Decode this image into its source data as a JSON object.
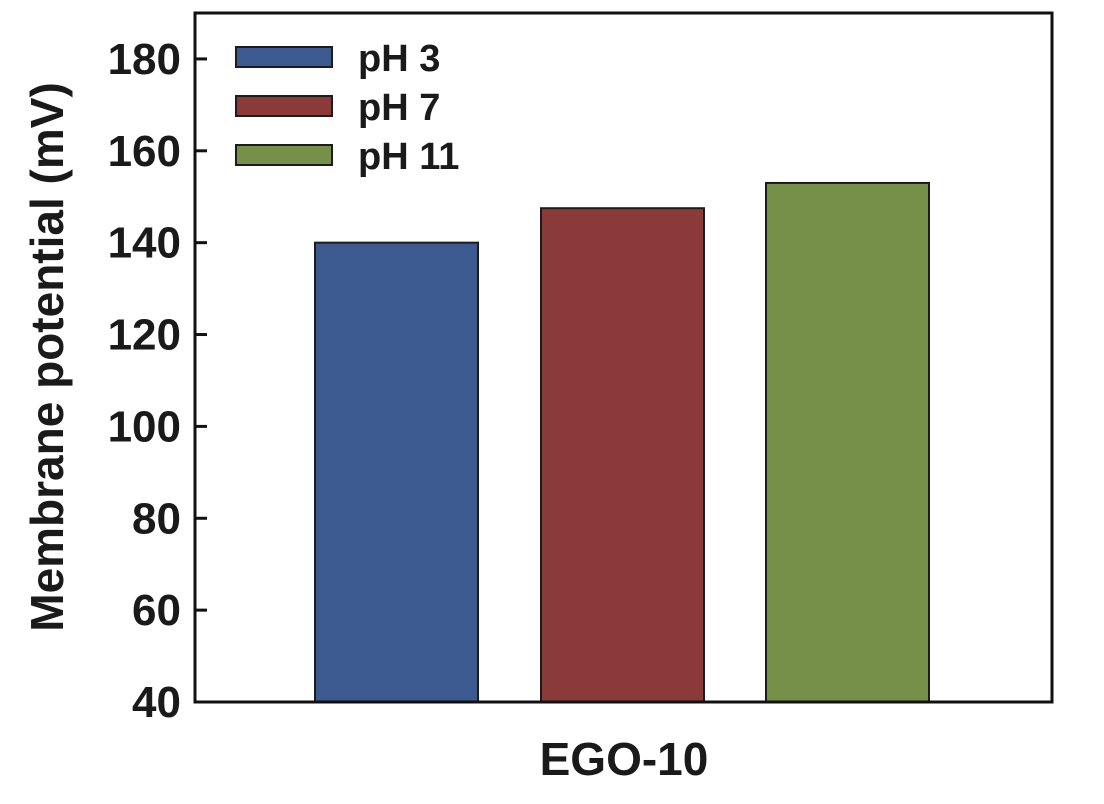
{
  "chart_data": {
    "type": "bar",
    "title": "",
    "xlabel": "EGO-10",
    "ylabel": "Membrane potential (mV)",
    "ylim": [
      40,
      190
    ],
    "yticks": [
      "40",
      "60",
      "80",
      "100",
      "120",
      "140",
      "160",
      "180"
    ],
    "yticks_values": [
      40,
      60,
      80,
      100,
      120,
      140,
      160,
      180
    ],
    "categories": [
      "EGO-10"
    ],
    "series": [
      {
        "name": "pH 3",
        "values": [
          140
        ],
        "color": "#3c5a8f"
      },
      {
        "name": "pH 7",
        "values": [
          147.5
        ],
        "color": "#8b3a3a"
      },
      {
        "name": "pH 11",
        "values": [
          153
        ],
        "color": "#76904a"
      }
    ],
    "legend": {
      "position": "top-left"
    },
    "grid": false
  }
}
